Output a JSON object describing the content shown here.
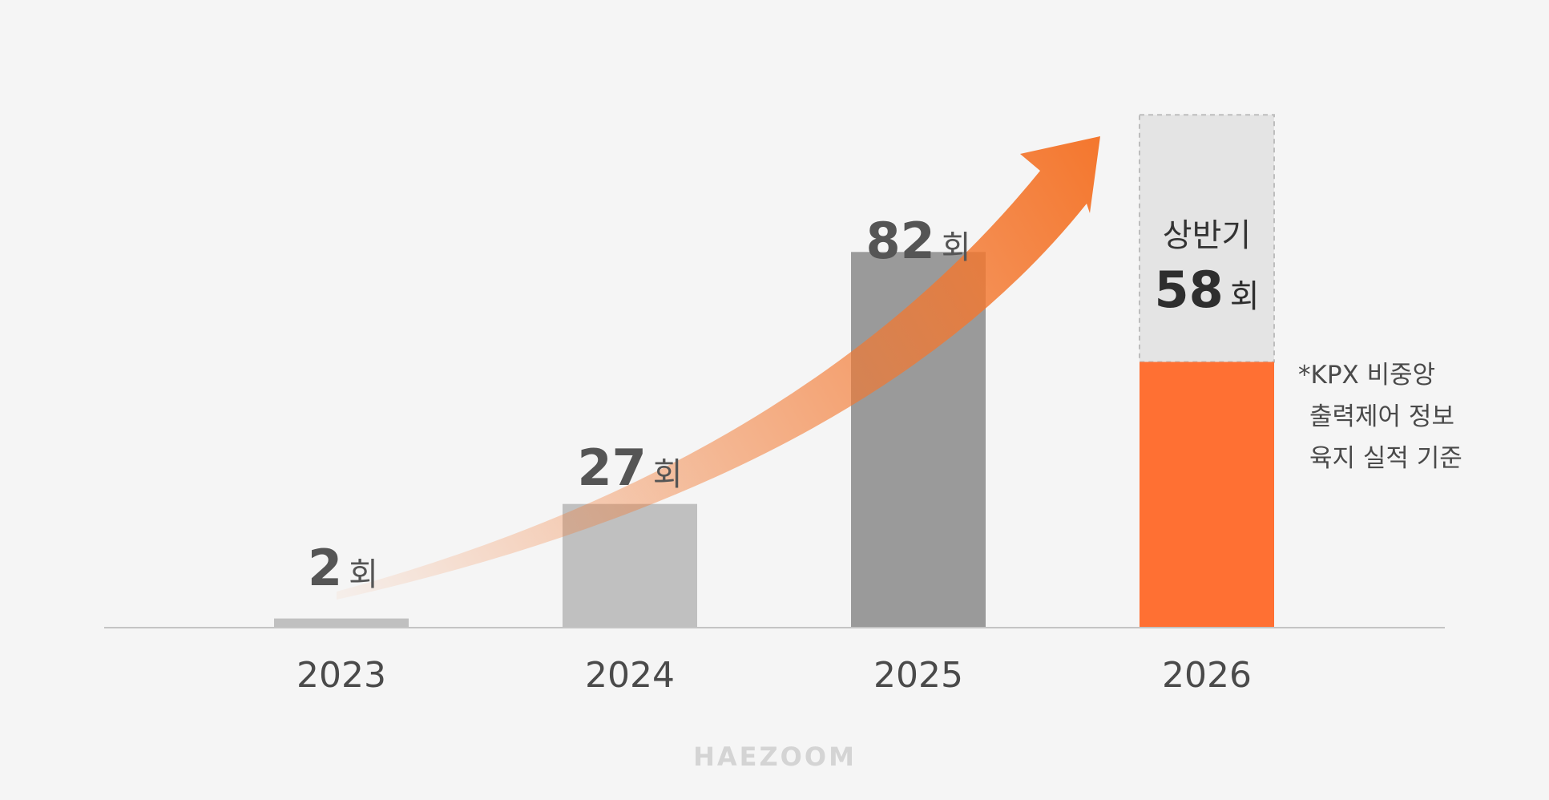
{
  "chart_data": {
    "type": "bar",
    "categories": [
      "2023",
      "2024",
      "2025",
      "2026"
    ],
    "values": [
      2,
      27,
      82,
      58
    ],
    "unit": "회",
    "partial_period_label": "상반기",
    "ylim": [
      0,
      130
    ],
    "grid": false,
    "colors": {
      "bar_2023": "#c0c0c0",
      "bar_2024": "#c0c0c0",
      "bar_2025": "#9a9a9a",
      "bar_2026": "#ff7033",
      "bar_2026_projection": "#e4e4e4",
      "arrow": "#f4772e"
    },
    "annotation_lines": [
      "*KPX 비중앙",
      "출력제어 정보",
      "육지 실적 기준"
    ]
  },
  "watermark": "HAEZOOM"
}
